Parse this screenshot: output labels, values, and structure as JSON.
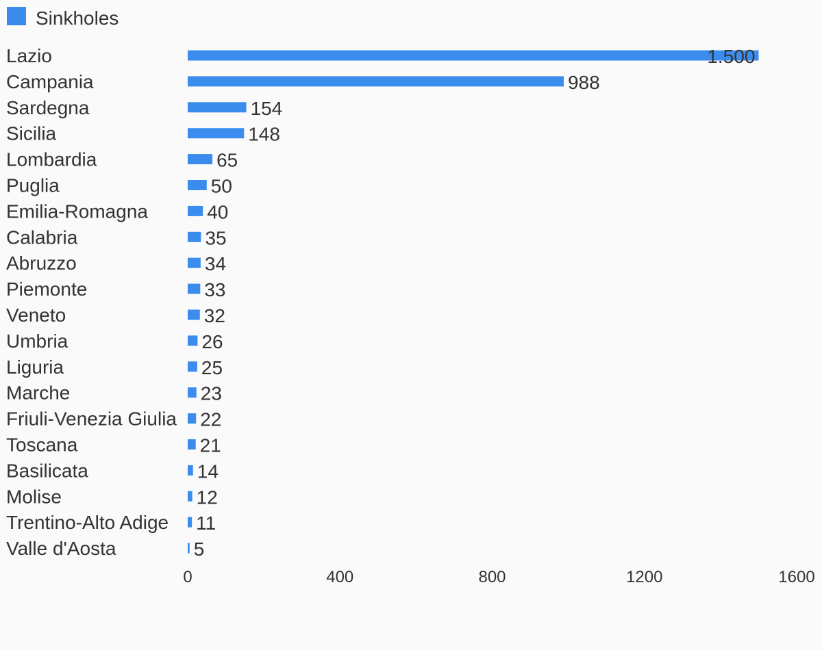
{
  "chart_data": {
    "type": "bar",
    "orientation": "horizontal",
    "legend": {
      "position": "top-left",
      "entries": [
        "Sinkholes"
      ]
    },
    "categories": [
      "Lazio",
      "Campania",
      "Sardegna",
      "Sicilia",
      "Lombardia",
      "Puglia",
      "Emilia-Romagna",
      "Calabria",
      "Abruzzo",
      "Piemonte",
      "Veneto",
      "Umbria",
      "Liguria",
      "Marche",
      "Friuli-Venezia Giulia",
      "Toscana",
      "Basilicata",
      "Molise",
      "Trentino-Alto Adige",
      "Valle d'Aosta"
    ],
    "series": [
      {
        "name": "Sinkholes",
        "color": "#3a8ded",
        "values": [
          1500,
          988,
          154,
          148,
          65,
          50,
          40,
          35,
          34,
          33,
          32,
          26,
          25,
          23,
          22,
          21,
          14,
          12,
          11,
          5
        ],
        "value_labels": [
          "1.500",
          "988",
          "154",
          "148",
          "65",
          "50",
          "40",
          "35",
          "34",
          "33",
          "32",
          "26",
          "25",
          "23",
          "22",
          "21",
          "14",
          "12",
          "11",
          "5"
        ]
      }
    ],
    "xlim": [
      0,
      1600
    ],
    "xticks": [
      0,
      400,
      800,
      1200,
      1600
    ],
    "xtick_labels": [
      "0",
      "400",
      "800",
      "1200",
      "1600"
    ],
    "grid": false
  }
}
